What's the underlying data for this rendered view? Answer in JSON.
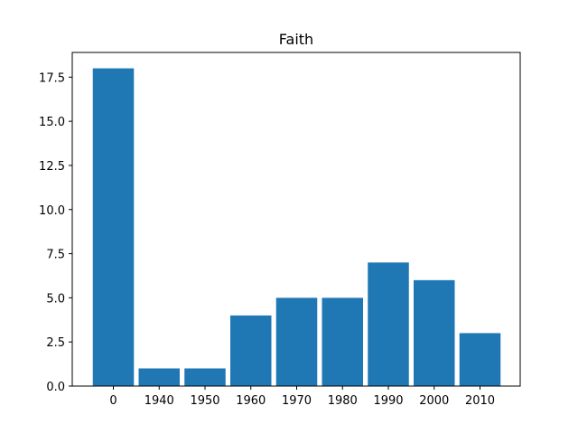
{
  "chart_data": {
    "type": "bar",
    "title": "Faith",
    "xlabel": "",
    "ylabel": "",
    "categories": [
      "0",
      "1940",
      "1950",
      "1960",
      "1970",
      "1980",
      "1990",
      "2000",
      "2010"
    ],
    "values": [
      18,
      1,
      1,
      4,
      5,
      5,
      7,
      6,
      3
    ],
    "ylim": [
      0,
      18.9
    ],
    "yticks": [
      0.0,
      2.5,
      5.0,
      7.5,
      10.0,
      12.5,
      15.0,
      17.5
    ],
    "ytick_labels": [
      "0.0",
      "2.5",
      "5.0",
      "7.5",
      "10.0",
      "12.5",
      "15.0",
      "17.5"
    ],
    "bar_color": "#1f77b4",
    "grid": false,
    "legend": "none"
  }
}
